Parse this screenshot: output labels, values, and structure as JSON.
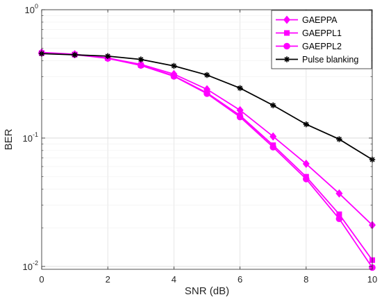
{
  "chart_data": {
    "type": "line",
    "title": "",
    "xlabel": "SNR (dB)",
    "ylabel": "BER",
    "xlim": [
      0,
      10
    ],
    "ylim": [
      0.0095,
      1
    ],
    "yscale": "log",
    "grid": true,
    "legend_position": "top-right",
    "x_ticks": [
      0,
      2,
      4,
      6,
      8,
      10
    ],
    "x_tick_labels": [
      "0",
      "2",
      "4",
      "6",
      "8",
      "10"
    ],
    "y_ticks": [
      {
        "value": 1,
        "base": "10",
        "exp": "0"
      },
      {
        "value": 0.1,
        "base": "10",
        "exp": "-1"
      },
      {
        "value": 0.01,
        "base": "10",
        "exp": "-2"
      }
    ],
    "x": [
      0,
      1,
      2,
      3,
      4,
      5,
      6,
      7,
      8,
      9,
      10
    ],
    "series": [
      {
        "name": "GAEPPA",
        "color": "#ff00ff",
        "marker": "diamond",
        "values": [
          0.465,
          0.45,
          0.42,
          0.375,
          0.315,
          0.24,
          0.165,
          0.103,
          0.063,
          0.037,
          0.021
        ]
      },
      {
        "name": "GAEPPL1",
        "color": "#ff00ff",
        "marker": "square",
        "values": [
          0.46,
          0.448,
          0.42,
          0.37,
          0.305,
          0.225,
          0.15,
          0.088,
          0.05,
          0.0255,
          0.0112
        ]
      },
      {
        "name": "GAEPPL2",
        "color": "#ff00ff",
        "marker": "circle",
        "values": [
          0.46,
          0.447,
          0.418,
          0.368,
          0.303,
          0.222,
          0.146,
          0.085,
          0.048,
          0.0235,
          0.0098
        ]
      },
      {
        "name": "Pulse blanking",
        "color": "#000000",
        "marker": "star",
        "values": [
          0.455,
          0.445,
          0.435,
          0.41,
          0.365,
          0.31,
          0.245,
          0.18,
          0.128,
          0.098,
          0.068
        ]
      }
    ]
  }
}
